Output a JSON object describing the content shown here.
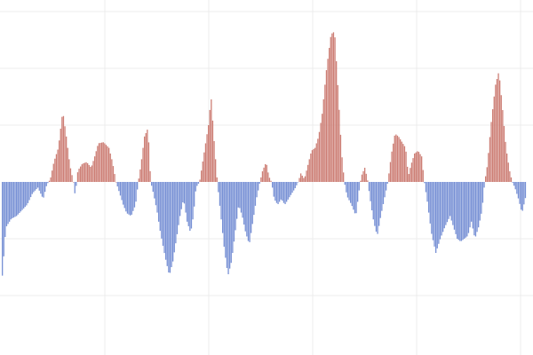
{
  "chart_data": {
    "type": "bar",
    "title": "",
    "xlabel": "",
    "ylabel": "",
    "ylim": [
      -16,
      16
    ],
    "xlim": [
      0,
      590
    ],
    "grid": true,
    "baseline": 0,
    "colors": {
      "positive": "#cd7f76",
      "negative": "#7891d5",
      "grid": "#ececec",
      "background": "#ffffff"
    },
    "keypoints": [
      [
        0,
        -16.5
      ],
      [
        4,
        -8
      ],
      [
        10,
        -6.5
      ],
      [
        16,
        -6
      ],
      [
        22,
        -5
      ],
      [
        28,
        -4
      ],
      [
        34,
        -2
      ],
      [
        40,
        -1
      ],
      [
        46,
        -3
      ],
      [
        50,
        -0.5
      ],
      [
        54,
        0.5
      ],
      [
        58,
        3.5
      ],
      [
        63,
        6
      ],
      [
        68,
        12.5
      ],
      [
        72,
        8
      ],
      [
        76,
        3
      ],
      [
        80,
        0
      ],
      [
        82,
        -2.5
      ],
      [
        85,
        2
      ],
      [
        90,
        3.2
      ],
      [
        95,
        3.5
      ],
      [
        100,
        2.5
      ],
      [
        104,
        4.5
      ],
      [
        108,
        6.8
      ],
      [
        114,
        7
      ],
      [
        120,
        6
      ],
      [
        124,
        3.5
      ],
      [
        128,
        0
      ],
      [
        132,
        -2
      ],
      [
        136,
        -4
      ],
      [
        140,
        -5.5
      ],
      [
        145,
        -6
      ],
      [
        150,
        -4
      ],
      [
        153,
        0
      ],
      [
        156,
        3
      ],
      [
        160,
        8
      ],
      [
        164,
        9.5
      ],
      [
        167,
        0
      ],
      [
        170,
        -2
      ],
      [
        174,
        -5
      ],
      [
        178,
        -9
      ],
      [
        183,
        -13
      ],
      [
        188,
        -16.5
      ],
      [
        192,
        -14
      ],
      [
        196,
        -10
      ],
      [
        200,
        -6
      ],
      [
        204,
        -3
      ],
      [
        208,
        -7
      ],
      [
        212,
        -9
      ],
      [
        215,
        -6
      ],
      [
        218,
        -1
      ],
      [
        222,
        0
      ],
      [
        224,
        2
      ],
      [
        228,
        6
      ],
      [
        232,
        10
      ],
      [
        235,
        15
      ],
      [
        238,
        8
      ],
      [
        242,
        0
      ],
      [
        246,
        -6
      ],
      [
        250,
        -12
      ],
      [
        254,
        -16.5
      ],
      [
        258,
        -14
      ],
      [
        262,
        -9
      ],
      [
        266,
        -4
      ],
      [
        270,
        -6
      ],
      [
        274,
        -9
      ],
      [
        278,
        -11
      ],
      [
        282,
        -7
      ],
      [
        286,
        -3
      ],
      [
        290,
        0
      ],
      [
        293,
        2
      ],
      [
        297,
        3.5
      ],
      [
        300,
        1
      ],
      [
        303,
        0
      ],
      [
        306,
        -3
      ],
      [
        310,
        -4
      ],
      [
        314,
        -3
      ],
      [
        318,
        -4
      ],
      [
        322,
        -3
      ],
      [
        326,
        -2
      ],
      [
        330,
        -1
      ],
      [
        333,
        0
      ],
      [
        336,
        1.5
      ],
      [
        340,
        0.5
      ],
      [
        344,
        3
      ],
      [
        348,
        5.5
      ],
      [
        352,
        6
      ],
      [
        356,
        8
      ],
      [
        360,
        12
      ],
      [
        365,
        20
      ],
      [
        370,
        26
      ],
      [
        374,
        26.5
      ],
      [
        378,
        16
      ],
      [
        382,
        5
      ],
      [
        385,
        0
      ],
      [
        388,
        -2.5
      ],
      [
        393,
        -4
      ],
      [
        398,
        -6
      ],
      [
        402,
        -1
      ],
      [
        404,
        1
      ],
      [
        408,
        2.5
      ],
      [
        411,
        0.5
      ],
      [
        414,
        -3
      ],
      [
        418,
        -7
      ],
      [
        422,
        -9.5
      ],
      [
        426,
        -6
      ],
      [
        430,
        -3
      ],
      [
        434,
        0
      ],
      [
        438,
        5
      ],
      [
        442,
        8.5
      ],
      [
        446,
        8
      ],
      [
        450,
        7
      ],
      [
        454,
        6
      ],
      [
        457,
        1
      ],
      [
        460,
        3
      ],
      [
        464,
        5
      ],
      [
        468,
        5.5
      ],
      [
        472,
        4.5
      ],
      [
        475,
        0
      ],
      [
        478,
        -3
      ],
      [
        483,
        -9
      ],
      [
        488,
        -12.5
      ],
      [
        493,
        -10
      ],
      [
        498,
        -8
      ],
      [
        504,
        -6
      ],
      [
        508,
        -8
      ],
      [
        512,
        -10
      ],
      [
        516,
        -10.5
      ],
      [
        520,
        -10
      ],
      [
        524,
        -9.5
      ],
      [
        528,
        -7
      ],
      [
        532,
        -10
      ],
      [
        536,
        -8
      ],
      [
        540,
        -5
      ],
      [
        543,
        0
      ],
      [
        546,
        3
      ],
      [
        550,
        10
      ],
      [
        555,
        17
      ],
      [
        559,
        19.5
      ],
      [
        563,
        13
      ],
      [
        567,
        6
      ],
      [
        571,
        2
      ],
      [
        574,
        0
      ],
      [
        577,
        -1
      ],
      [
        581,
        -3
      ],
      [
        585,
        -5.5
      ],
      [
        590,
        -2
      ]
    ]
  }
}
